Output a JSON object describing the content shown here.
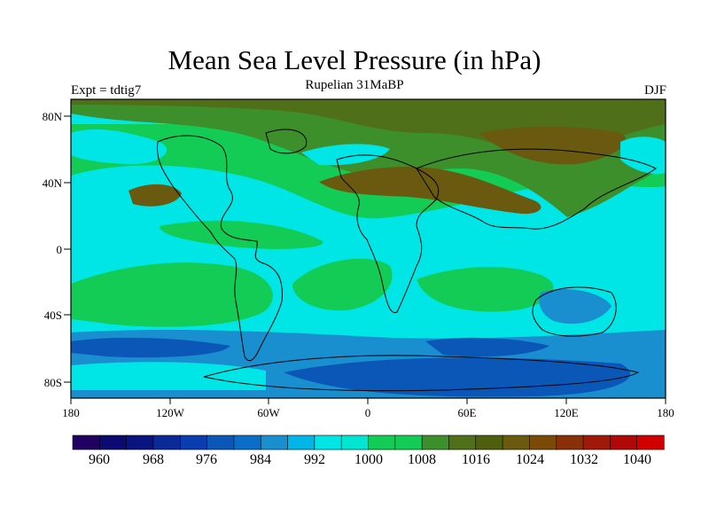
{
  "title": "Mean Sea Level Pressure (in hPa)",
  "subtitle": "Rupelian  31MaBP",
  "left_label": "Expt = tdtig7",
  "right_label": "DJF",
  "map": {
    "lat_ticks": [
      "80N",
      "40N",
      "0",
      "40S",
      "80S"
    ],
    "lon_ticks": [
      "180",
      "120W",
      "60W",
      "0",
      "60E",
      "120E",
      "180"
    ],
    "colors": {
      "deep_blue_low": "#0a57b8",
      "mid_blue": "#1a8fd0",
      "cyan": "#00e6e6",
      "light_green": "#12cc55",
      "mid_green": "#3c8f2a",
      "olive": "#4f6f18",
      "brown_high": "#6a5a10",
      "coast": "#000000"
    }
  },
  "colorbar": {
    "labels": [
      "960",
      "968",
      "976",
      "984",
      "992",
      "1000",
      "1008",
      "1016",
      "1024",
      "1032",
      "1040"
    ],
    "colors": [
      "#200060",
      "#0a0a70",
      "#0a1480",
      "#0a2a98",
      "#0a3eb0",
      "#0a57b8",
      "#0a6ec8",
      "#1a8fd0",
      "#00b6e6",
      "#00e6e6",
      "#00e6d0",
      "#12cc55",
      "#12cc55",
      "#3c8f2a",
      "#4f6f18",
      "#4f5f10",
      "#6a5a10",
      "#7a4a08",
      "#8a3008",
      "#a01808",
      "#b00808",
      "#d00000"
    ]
  }
}
